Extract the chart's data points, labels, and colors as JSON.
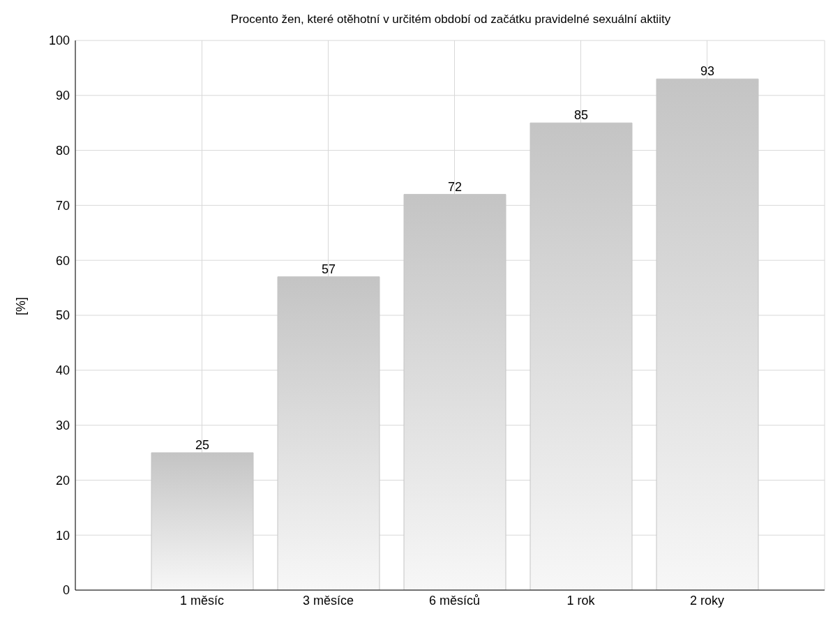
{
  "chart_data": {
    "type": "bar",
    "title": "Procento žen, které otěhotní v určitém období od začátku pravidelné sexuální aktiity",
    "ylabel": "[%]",
    "categories": [
      "1 měsíc",
      "3 měsíce",
      "6 měsíců",
      "1 rok",
      "2 roky"
    ],
    "values": [
      25,
      57,
      72,
      85,
      93
    ],
    "color": "#c4c4c4",
    "ylim": [
      0,
      100
    ],
    "yticks": [
      0,
      10,
      20,
      30,
      40,
      50,
      60,
      70,
      80,
      90,
      100
    ],
    "grid": true,
    "data_labels": true
  }
}
